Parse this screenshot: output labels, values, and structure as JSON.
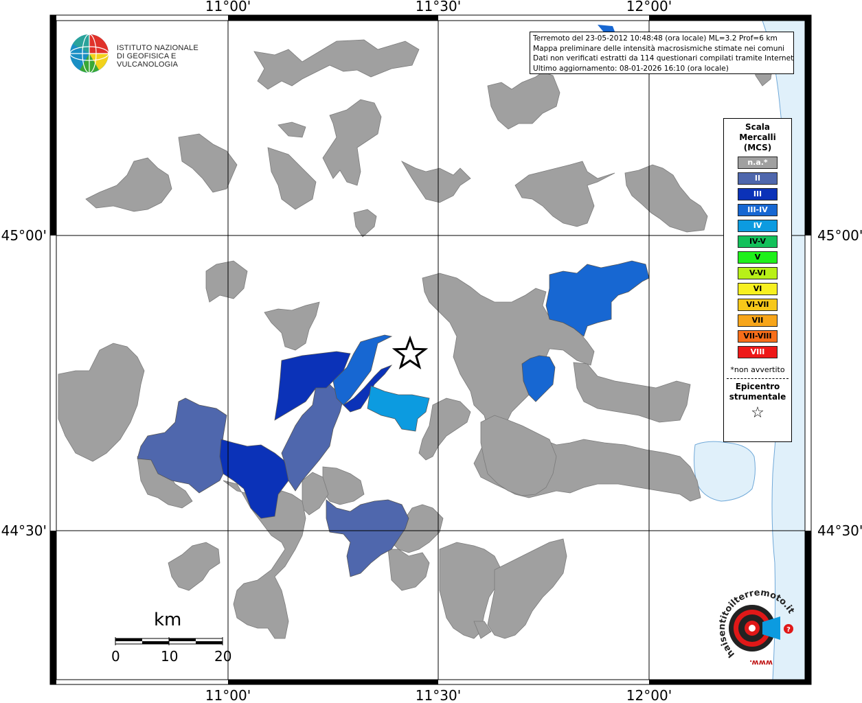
{
  "info": {
    "line1": "Terremoto del 23-05-2012 10:48:48 (ora locale) ML=3.2 Prof=6 km",
    "line2": "Mappa preliminare delle intensità macrosismiche stimate nei comuni",
    "line3": "Dati non verificati estratti da 114 questionari compilati tramite Internet.",
    "line4": "Ultimo aggiornamento: 08-01-2026 16:10 (ora locale)"
  },
  "logo": {
    "line1": "ISTITUTO NAZIONALE",
    "line2": "DI GEOFISICA E VULCANOLOGIA"
  },
  "coords": {
    "top": [
      "11°00'",
      "11°30'",
      "12°00'"
    ],
    "bottom": [
      "11°00'",
      "11°30'",
      "12°00'"
    ],
    "left": [
      "45°00'",
      "44°30'"
    ],
    "right": [
      "45°00'",
      "44°30'"
    ]
  },
  "legend": {
    "title1": "Scala",
    "title2": "Mercalli",
    "title3": "(MCS)",
    "items": [
      {
        "label": "n.a.*",
        "color": "#a0a0a0",
        "text": "#ffffff"
      },
      {
        "label": "II",
        "color": "#4f67ad",
        "text": "#ffffff"
      },
      {
        "label": "III",
        "color": "#0b32b8",
        "text": "#ffffff"
      },
      {
        "label": "III-IV",
        "color": "#1767d2",
        "text": "#ffffff"
      },
      {
        "label": "IV",
        "color": "#0c9be0",
        "text": "#ffffff"
      },
      {
        "label": "IV-V",
        "color": "#13c15a",
        "text": "#000000"
      },
      {
        "label": "V",
        "color": "#1ef01a",
        "text": "#000000"
      },
      {
        "label": "V-VI",
        "color": "#b8f018",
        "text": "#000000"
      },
      {
        "label": "VI",
        "color": "#f7f020",
        "text": "#000000"
      },
      {
        "label": "VI-VII",
        "color": "#f7c81a",
        "text": "#000000"
      },
      {
        "label": "VII",
        "color": "#f7a51a",
        "text": "#000000"
      },
      {
        "label": "VII-VIII",
        "color": "#f76e1a",
        "text": "#000000"
      },
      {
        "label": "VIII",
        "color": "#ee1818",
        "text": "#ffffff"
      }
    ],
    "na_note": "*non avvertito",
    "epi1": "Epicentro",
    "epi2": "strumentale",
    "epi_symbol": "☆"
  },
  "scale": {
    "unit": "km",
    "ticks": [
      "0",
      "10",
      "20"
    ]
  },
  "hs": {
    "text": "haisentitoilterremoto.it",
    "www": "www."
  },
  "colors": {
    "na": "#a0a0a0",
    "ii": "#4f67ad",
    "iii": "#0b32b8",
    "iii_iv": "#1767d2",
    "iv": "#0c9be0",
    "sea": "#e0f0fa",
    "grid": "#000000"
  }
}
